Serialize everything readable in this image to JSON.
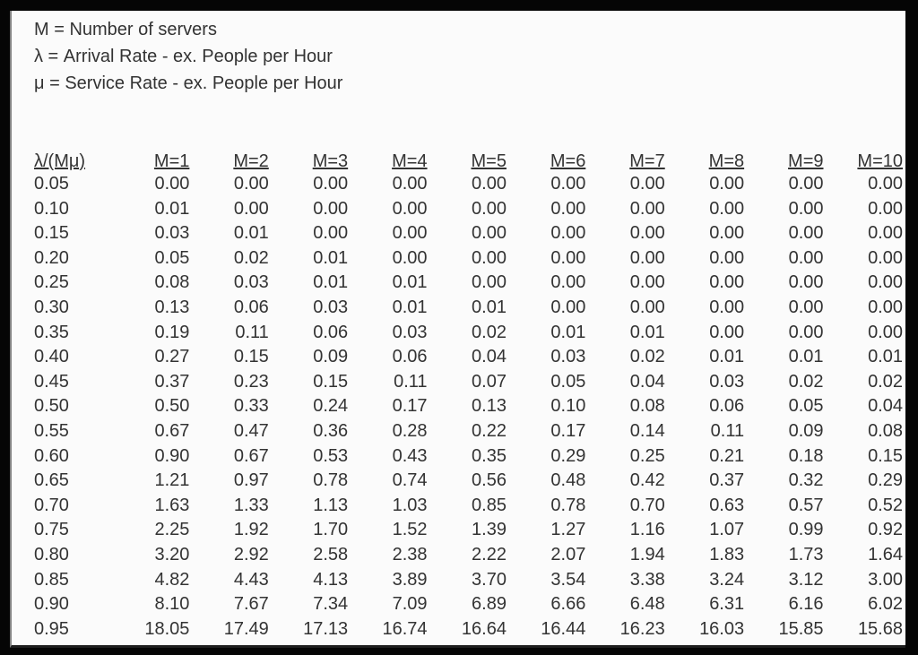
{
  "legend": {
    "lines": [
      "M = Number of servers",
      "λ = Arrival Rate - ex. People per Hour",
      "μ = Service Rate - ex. People per Hour"
    ]
  },
  "chart_data": {
    "type": "table",
    "columns": [
      "λ/(Mμ)",
      "M=1",
      "M=2",
      "M=3",
      "M=4",
      "M=5",
      "M=6",
      "M=7",
      "M=8",
      "M=9",
      "M=10"
    ],
    "rows": [
      [
        "0.05",
        "0.00",
        "0.00",
        "0.00",
        "0.00",
        "0.00",
        "0.00",
        "0.00",
        "0.00",
        "0.00",
        "0.00"
      ],
      [
        "0.10",
        "0.01",
        "0.00",
        "0.00",
        "0.00",
        "0.00",
        "0.00",
        "0.00",
        "0.00",
        "0.00",
        "0.00"
      ],
      [
        "0.15",
        "0.03",
        "0.01",
        "0.00",
        "0.00",
        "0.00",
        "0.00",
        "0.00",
        "0.00",
        "0.00",
        "0.00"
      ],
      [
        "0.20",
        "0.05",
        "0.02",
        "0.01",
        "0.00",
        "0.00",
        "0.00",
        "0.00",
        "0.00",
        "0.00",
        "0.00"
      ],
      [
        "0.25",
        "0.08",
        "0.03",
        "0.01",
        "0.01",
        "0.00",
        "0.00",
        "0.00",
        "0.00",
        "0.00",
        "0.00"
      ],
      [
        "0.30",
        "0.13",
        "0.06",
        "0.03",
        "0.01",
        "0.01",
        "0.00",
        "0.00",
        "0.00",
        "0.00",
        "0.00"
      ],
      [
        "0.35",
        "0.19",
        "0.11",
        "0.06",
        "0.03",
        "0.02",
        "0.01",
        "0.01",
        "0.00",
        "0.00",
        "0.00"
      ],
      [
        "0.40",
        "0.27",
        "0.15",
        "0.09",
        "0.06",
        "0.04",
        "0.03",
        "0.02",
        "0.01",
        "0.01",
        "0.01"
      ],
      [
        "0.45",
        "0.37",
        "0.23",
        "0.15",
        "0.11",
        "0.07",
        "0.05",
        "0.04",
        "0.03",
        "0.02",
        "0.02"
      ],
      [
        "0.50",
        "0.50",
        "0.33",
        "0.24",
        "0.17",
        "0.13",
        "0.10",
        "0.08",
        "0.06",
        "0.05",
        "0.04"
      ],
      [
        "0.55",
        "0.67",
        "0.47",
        "0.36",
        "0.28",
        "0.22",
        "0.17",
        "0.14",
        "0.11",
        "0.09",
        "0.08"
      ],
      [
        "0.60",
        "0.90",
        "0.67",
        "0.53",
        "0.43",
        "0.35",
        "0.29",
        "0.25",
        "0.21",
        "0.18",
        "0.15"
      ],
      [
        "0.65",
        "1.21",
        "0.97",
        "0.78",
        "0.74",
        "0.56",
        "0.48",
        "0.42",
        "0.37",
        "0.32",
        "0.29"
      ],
      [
        "0.70",
        "1.63",
        "1.33",
        "1.13",
        "1.03",
        "0.85",
        "0.78",
        "0.70",
        "0.63",
        "0.57",
        "0.52"
      ],
      [
        "0.75",
        "2.25",
        "1.92",
        "1.70",
        "1.52",
        "1.39",
        "1.27",
        "1.16",
        "1.07",
        "0.99",
        "0.92"
      ],
      [
        "0.80",
        "3.20",
        "2.92",
        "2.58",
        "2.38",
        "2.22",
        "2.07",
        "1.94",
        "1.83",
        "1.73",
        "1.64"
      ],
      [
        "0.85",
        "4.82",
        "4.43",
        "4.13",
        "3.89",
        "3.70",
        "3.54",
        "3.38",
        "3.24",
        "3.12",
        "3.00"
      ],
      [
        "0.90",
        "8.10",
        "7.67",
        "7.34",
        "7.09",
        "6.89",
        "6.66",
        "6.48",
        "6.31",
        "6.16",
        "6.02"
      ],
      [
        "0.95",
        "18.05",
        "17.49",
        "17.13",
        "16.74",
        "16.64",
        "16.44",
        "16.23",
        "16.03",
        "15.85",
        "15.68"
      ]
    ]
  },
  "colors": {
    "scan_background": "#050505",
    "page": "#fbfbfb",
    "text": "#333333",
    "left_edge_line": "#828282",
    "bottom_rule": "#1e1e1e"
  }
}
